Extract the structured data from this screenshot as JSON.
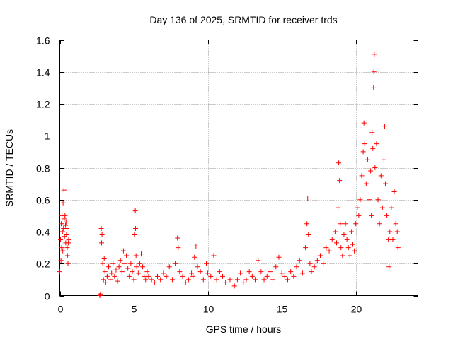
{
  "chart_data": {
    "type": "scatter",
    "title": "Day 136 of 2025, SRMTID for receiver trds",
    "xlabel": "GPS time / hours",
    "ylabel": "SRMTID / TECUs",
    "xlim": [
      0,
      24.2
    ],
    "ylim": [
      0,
      1.6
    ],
    "xticks": [
      0,
      5,
      10,
      15,
      20
    ],
    "xtick_labels": [
      "0",
      "5",
      "10",
      "15",
      "20"
    ],
    "yticks": [
      0,
      0.2,
      0.4,
      0.6,
      0.8,
      1.0,
      1.2,
      1.4,
      1.6
    ],
    "ytick_labels": [
      "0",
      "0.2",
      "0.4",
      "0.6",
      "0.8",
      "1",
      "1.2",
      "1.4",
      "1.6"
    ],
    "grid": true,
    "marker": "+",
    "color": "#ff0000",
    "series": [
      {
        "name": "SRMTID",
        "points": [
          [
            0.0,
            0.15
          ],
          [
            0.05,
            0.35
          ],
          [
            0.08,
            0.22
          ],
          [
            0.1,
            0.45
          ],
          [
            0.12,
            0.3
          ],
          [
            0.15,
            0.5
          ],
          [
            0.18,
            0.4
          ],
          [
            0.2,
            0.28
          ],
          [
            0.22,
            0.58
          ],
          [
            0.25,
            0.42
          ],
          [
            0.28,
            0.66
          ],
          [
            0.3,
            0.48
          ],
          [
            0.32,
            0.37
          ],
          [
            0.35,
            0.5
          ],
          [
            0.38,
            0.44
          ],
          [
            0.4,
            0.33
          ],
          [
            0.42,
            0.46
          ],
          [
            0.45,
            0.38
          ],
          [
            0.48,
            0.42
          ],
          [
            0.5,
            0.3
          ],
          [
            0.52,
            0.25
          ],
          [
            0.55,
            0.2
          ],
          [
            0.58,
            0.33
          ],
          [
            0.6,
            0.35
          ],
          [
            2.7,
            0.0
          ],
          [
            2.75,
            0.01
          ],
          [
            2.8,
            0.42
          ],
          [
            2.82,
            0.33
          ],
          [
            2.85,
            0.38
          ],
          [
            2.9,
            0.2
          ],
          [
            2.95,
            0.1
          ],
          [
            3.0,
            0.23
          ],
          [
            3.05,
            0.15
          ],
          [
            3.1,
            0.08
          ],
          [
            3.2,
            0.12
          ],
          [
            3.3,
            0.18
          ],
          [
            3.4,
            0.1
          ],
          [
            3.5,
            0.14
          ],
          [
            3.6,
            0.2
          ],
          [
            3.7,
            0.12
          ],
          [
            3.8,
            0.16
          ],
          [
            3.9,
            0.09
          ],
          [
            4.0,
            0.18
          ],
          [
            4.1,
            0.22
          ],
          [
            4.2,
            0.15
          ],
          [
            4.3,
            0.28
          ],
          [
            4.4,
            0.2
          ],
          [
            4.5,
            0.25
          ],
          [
            4.6,
            0.17
          ],
          [
            4.7,
            0.12
          ],
          [
            4.8,
            0.2
          ],
          [
            4.9,
            0.15
          ],
          [
            5.0,
            0.1
          ],
          [
            5.05,
            0.38
          ],
          [
            5.1,
            0.53
          ],
          [
            5.12,
            0.42
          ],
          [
            5.15,
            0.25
          ],
          [
            5.2,
            0.18
          ],
          [
            5.3,
            0.14
          ],
          [
            5.4,
            0.2
          ],
          [
            5.5,
            0.26
          ],
          [
            5.6,
            0.18
          ],
          [
            5.7,
            0.12
          ],
          [
            5.8,
            0.1
          ],
          [
            5.9,
            0.15
          ],
          [
            6.0,
            0.12
          ],
          [
            6.2,
            0.1
          ],
          [
            6.4,
            0.08
          ],
          [
            6.6,
            0.12
          ],
          [
            6.8,
            0.1
          ],
          [
            7.0,
            0.14
          ],
          [
            7.2,
            0.12
          ],
          [
            7.4,
            0.18
          ],
          [
            7.6,
            0.1
          ],
          [
            7.8,
            0.2
          ],
          [
            7.95,
            0.36
          ],
          [
            8.0,
            0.3
          ],
          [
            8.1,
            0.15
          ],
          [
            8.3,
            0.12
          ],
          [
            8.5,
            0.08
          ],
          [
            8.7,
            0.1
          ],
          [
            8.9,
            0.14
          ],
          [
            9.0,
            0.12
          ],
          [
            9.1,
            0.24
          ],
          [
            9.2,
            0.31
          ],
          [
            9.3,
            0.18
          ],
          [
            9.5,
            0.15
          ],
          [
            9.7,
            0.1
          ],
          [
            9.9,
            0.2
          ],
          [
            10.0,
            0.14
          ],
          [
            10.2,
            0.12
          ],
          [
            10.4,
            0.25
          ],
          [
            10.6,
            0.1
          ],
          [
            10.8,
            0.15
          ],
          [
            11.0,
            0.12
          ],
          [
            11.2,
            0.08
          ],
          [
            11.5,
            0.1
          ],
          [
            11.8,
            0.06
          ],
          [
            12.0,
            0.1
          ],
          [
            12.2,
            0.14
          ],
          [
            12.4,
            0.08
          ],
          [
            12.6,
            0.1
          ],
          [
            12.8,
            0.15
          ],
          [
            13.0,
            0.12
          ],
          [
            13.2,
            0.1
          ],
          [
            13.4,
            0.22
          ],
          [
            13.6,
            0.15
          ],
          [
            13.8,
            0.1
          ],
          [
            14.0,
            0.12
          ],
          [
            14.2,
            0.15
          ],
          [
            14.4,
            0.1
          ],
          [
            14.6,
            0.18
          ],
          [
            14.8,
            0.24
          ],
          [
            15.0,
            0.14
          ],
          [
            15.2,
            0.12
          ],
          [
            15.4,
            0.1
          ],
          [
            15.6,
            0.15
          ],
          [
            15.8,
            0.12
          ],
          [
            16.0,
            0.18
          ],
          [
            16.2,
            0.22
          ],
          [
            16.4,
            0.14
          ],
          [
            16.6,
            0.3
          ],
          [
            16.7,
            0.45
          ],
          [
            16.75,
            0.61
          ],
          [
            16.8,
            0.38
          ],
          [
            16.9,
            0.2
          ],
          [
            17.0,
            0.15
          ],
          [
            17.2,
            0.18
          ],
          [
            17.4,
            0.22
          ],
          [
            17.6,
            0.25
          ],
          [
            17.8,
            0.2
          ],
          [
            18.0,
            0.3
          ],
          [
            18.2,
            0.28
          ],
          [
            18.4,
            0.35
          ],
          [
            18.6,
            0.4
          ],
          [
            18.7,
            0.33
          ],
          [
            18.8,
            0.55
          ],
          [
            18.85,
            0.83
          ],
          [
            18.9,
            0.72
          ],
          [
            18.95,
            0.45
          ],
          [
            19.0,
            0.3
          ],
          [
            19.1,
            0.25
          ],
          [
            19.2,
            0.38
          ],
          [
            19.3,
            0.45
          ],
          [
            19.4,
            0.35
          ],
          [
            19.5,
            0.3
          ],
          [
            19.6,
            0.25
          ],
          [
            19.7,
            0.4
          ],
          [
            19.8,
            0.32
          ],
          [
            19.9,
            0.28
          ],
          [
            20.0,
            0.45
          ],
          [
            20.1,
            0.55
          ],
          [
            20.2,
            0.5
          ],
          [
            20.3,
            0.6
          ],
          [
            20.4,
            0.75
          ],
          [
            20.5,
            0.9
          ],
          [
            20.55,
            1.08
          ],
          [
            20.6,
            0.95
          ],
          [
            20.7,
            0.7
          ],
          [
            20.8,
            0.85
          ],
          [
            20.9,
            0.6
          ],
          [
            21.0,
            0.78
          ],
          [
            21.05,
            0.5
          ],
          [
            21.1,
            1.02
          ],
          [
            21.15,
            0.92
          ],
          [
            21.2,
            1.3
          ],
          [
            21.22,
            1.4
          ],
          [
            21.25,
            1.51
          ],
          [
            21.3,
            0.8
          ],
          [
            21.4,
            0.95
          ],
          [
            21.5,
            0.6
          ],
          [
            21.6,
            0.45
          ],
          [
            21.7,
            0.75
          ],
          [
            21.8,
            0.55
          ],
          [
            21.9,
            0.85
          ],
          [
            21.95,
            1.06
          ],
          [
            22.0,
            0.7
          ],
          [
            22.1,
            0.5
          ],
          [
            22.2,
            0.35
          ],
          [
            22.25,
            0.18
          ],
          [
            22.3,
            0.4
          ],
          [
            22.4,
            0.55
          ],
          [
            22.5,
            0.35
          ],
          [
            22.6,
            0.65
          ],
          [
            22.7,
            0.45
          ],
          [
            22.8,
            0.4
          ],
          [
            22.85,
            0.3
          ]
        ]
      }
    ]
  }
}
